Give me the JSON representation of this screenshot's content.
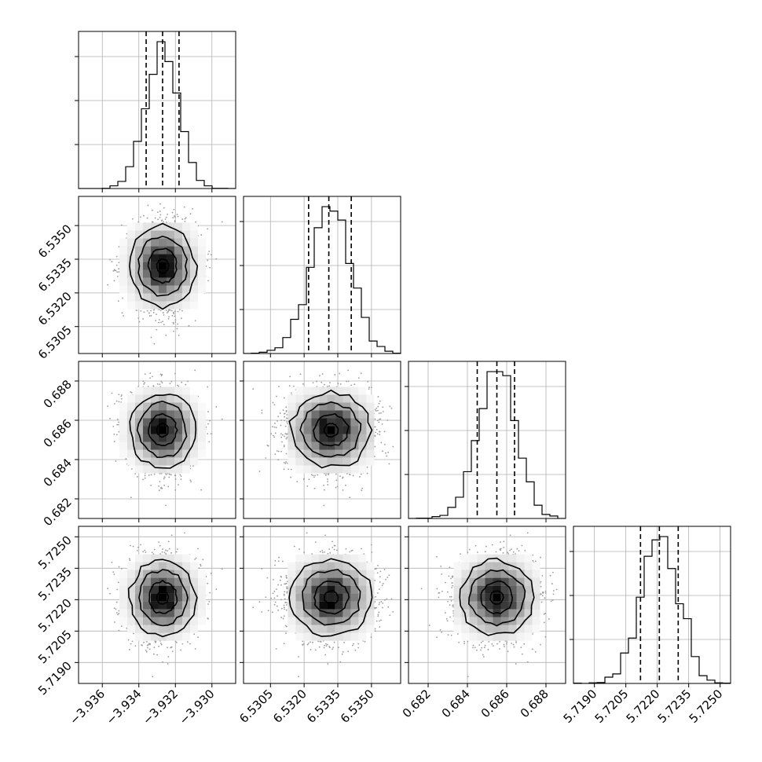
{
  "chart_data": {
    "type": "corner",
    "n_params": 4,
    "labels": [
      "",
      "",
      "",
      ""
    ],
    "parameters": [
      {
        "index": 0,
        "center": -3.9327,
        "sigma": 0.0009,
        "range": [
          -3.9373,
          -3.9287
        ],
        "ticks": [
          -3.936,
          -3.934,
          -3.932,
          -3.93
        ],
        "tick_labels": [
          "−3.936",
          "−3.934",
          "−3.932",
          "−3.930"
        ],
        "quantiles": [
          -3.9336,
          -3.9327,
          -3.9318
        ]
      },
      {
        "index": 1,
        "center": 6.5332,
        "sigma": 0.0009,
        "range": [
          6.5293,
          6.5363
        ],
        "ticks": [
          6.5305,
          6.532,
          6.5335,
          6.535
        ],
        "tick_labels": [
          "6.5305",
          "6.5320",
          "6.5335",
          "6.5350"
        ],
        "quantiles": [
          6.5322,
          6.5331,
          6.5341
        ]
      },
      {
        "index": 2,
        "center": 0.6855,
        "sigma": 0.00095,
        "range": [
          0.681,
          0.689
        ],
        "ticks": [
          0.682,
          0.684,
          0.686,
          0.688
        ],
        "tick_labels": [
          "0.682",
          "0.684",
          "0.686",
          "0.688"
        ],
        "quantiles": [
          0.6845,
          0.6855,
          0.6864
        ]
      },
      {
        "index": 3,
        "center": 5.7221,
        "sigma": 0.0009,
        "range": [
          5.718,
          5.7255
        ],
        "ticks": [
          5.719,
          5.7205,
          5.722,
          5.7235,
          5.725
        ],
        "tick_labels": [
          "5.7190",
          "5.7205",
          "5.7220",
          "5.7235",
          "5.7250"
        ],
        "quantiles": [
          5.7212,
          5.7221,
          5.723
        ]
      }
    ],
    "histogram_bins": 20,
    "contour_levels": 3,
    "grid": true,
    "legend": "none",
    "colors": {
      "scatter": "#9a9a9a",
      "lines": "#000000",
      "density_max": "#000000",
      "density_min": "#ffffff"
    }
  }
}
